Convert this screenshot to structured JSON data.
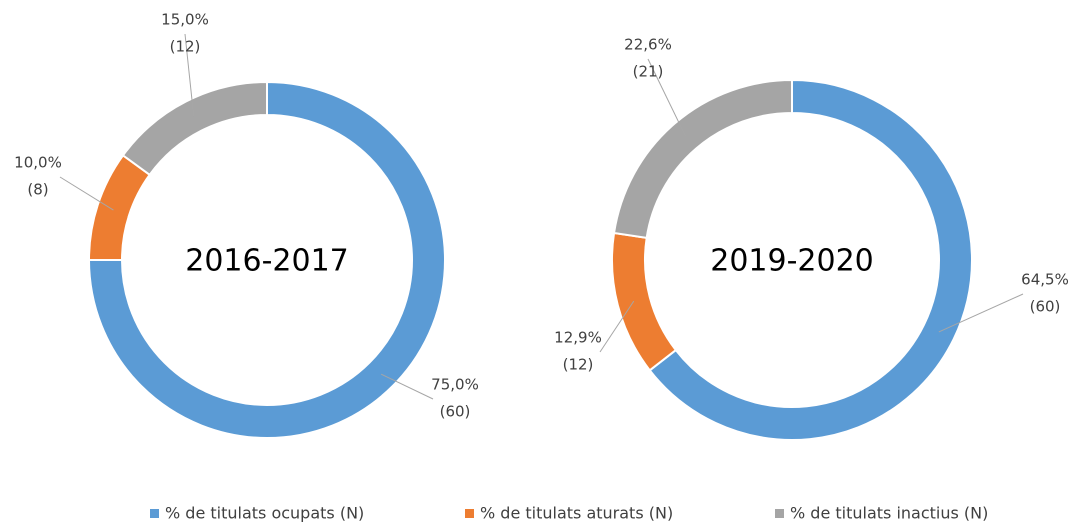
{
  "chart_data": [
    {
      "type": "donut",
      "title": "2016-2017",
      "values": [
        75.0,
        10.0,
        15.0
      ],
      "value_labels": [
        "75,0%",
        "10,0%",
        "15,0%"
      ],
      "counts": [
        60,
        8,
        12
      ],
      "count_labels": [
        "(60)",
        "(8)",
        "(12)"
      ]
    },
    {
      "type": "donut",
      "title": "2019-2020",
      "values": [
        64.5,
        12.9,
        22.6
      ],
      "value_labels": [
        "64,5%",
        "12,9%",
        "22,6%"
      ],
      "counts": [
        60,
        12,
        21
      ],
      "count_labels": [
        "(60)",
        "(12)",
        "(21)"
      ]
    }
  ],
  "legend": {
    "labels": [
      "% de titulats ocupats (N)",
      "% de titulats aturats (N)",
      "% de titulats inactius (N)"
    ],
    "colors": [
      "#5b9bd5",
      "#ed7d31",
      "#a5a5a5"
    ]
  }
}
